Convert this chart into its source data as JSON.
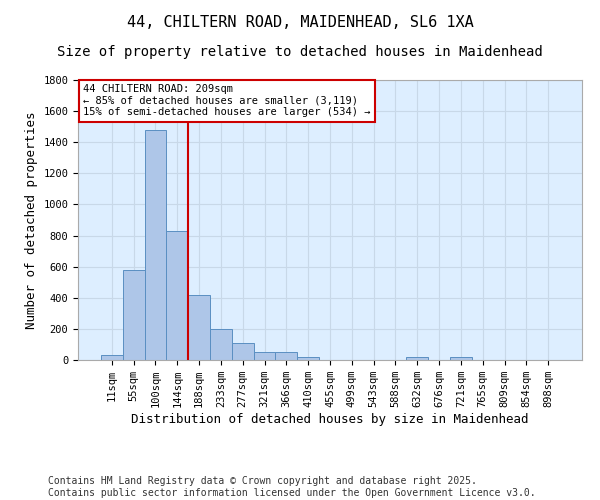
{
  "title_line1": "44, CHILTERN ROAD, MAIDENHEAD, SL6 1XA",
  "title_line2": "Size of property relative to detached houses in Maidenhead",
  "xlabel": "Distribution of detached houses by size in Maidenhead",
  "ylabel": "Number of detached properties",
  "categories": [
    "11sqm",
    "55sqm",
    "100sqm",
    "144sqm",
    "188sqm",
    "233sqm",
    "277sqm",
    "321sqm",
    "366sqm",
    "410sqm",
    "455sqm",
    "499sqm",
    "543sqm",
    "588sqm",
    "632sqm",
    "676sqm",
    "721sqm",
    "765sqm",
    "809sqm",
    "854sqm",
    "898sqm"
  ],
  "values": [
    30,
    580,
    1480,
    830,
    420,
    200,
    110,
    50,
    50,
    20,
    0,
    0,
    0,
    0,
    20,
    0,
    20,
    0,
    0,
    0,
    0
  ],
  "bar_color": "#aec6e8",
  "bar_edge_color": "#5a8fc2",
  "grid_color": "#c8d8e8",
  "background_color": "#ddeeff",
  "vline_color": "#cc0000",
  "vline_pos": 3.5,
  "annotation_text": "44 CHILTERN ROAD: 209sqm\n← 85% of detached houses are smaller (3,119)\n15% of semi-detached houses are larger (534) →",
  "annotation_box_color": "#cc0000",
  "ylim": [
    0,
    1800
  ],
  "yticks": [
    0,
    200,
    400,
    600,
    800,
    1000,
    1200,
    1400,
    1600,
    1800
  ],
  "footer_text": "Contains HM Land Registry data © Crown copyright and database right 2025.\nContains public sector information licensed under the Open Government Licence v3.0.",
  "title_fontsize": 11,
  "subtitle_fontsize": 10,
  "axis_label_fontsize": 9,
  "tick_fontsize": 7.5,
  "footer_fontsize": 7,
  "ann_fontsize": 7.5
}
